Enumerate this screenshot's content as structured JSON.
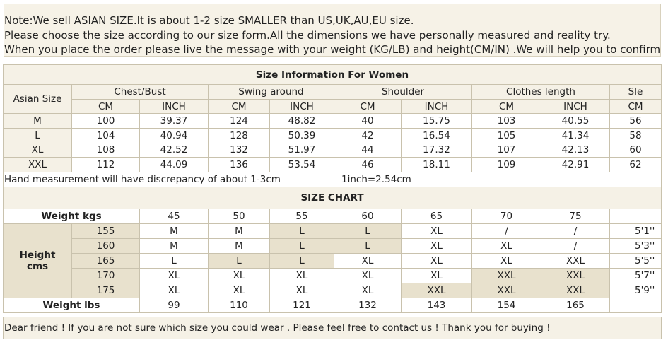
{
  "note": [
    "Note:We sell ASIAN SIZE.It is about 1-2 size SMALLER than US,UK,AU,EU size.",
    "Please choose the size according to our size form.All the dimensions we have personally measured and reality try.",
    "When you place the order please live the message with your weight (KG/LB) and height(CM/IN) .We will help you to confirm the size"
  ],
  "size_info": {
    "title": "Size Information For Women",
    "asian_size_label": "Asian Size",
    "groups": [
      "Chest/Bust",
      "Swing around",
      "Shoulder",
      "Clothes length",
      "Sle"
    ],
    "units": [
      "CM",
      "INCH",
      "CM",
      "INCH",
      "CM",
      "INCH",
      "CM",
      "INCH",
      "CM"
    ],
    "rows": [
      [
        "M",
        "100",
        "39.37",
        "124",
        "48.82",
        "40",
        "15.75",
        "103",
        "40.55",
        "56"
      ],
      [
        "L",
        "104",
        "40.94",
        "128",
        "50.39",
        "42",
        "16.54",
        "105",
        "41.34",
        "58"
      ],
      [
        "XL",
        "108",
        "42.52",
        "132",
        "51.97",
        "44",
        "17.32",
        "107",
        "42.13",
        "60"
      ],
      [
        "XXL",
        "112",
        "44.09",
        "136",
        "53.54",
        "46",
        "18.11",
        "109",
        "42.91",
        "62"
      ]
    ]
  },
  "hand_note": "Hand measurement will have discrepancy of about 1-3cm",
  "inch_note": "1inch=2.54cm",
  "size_chart": {
    "title": "SIZE CHART",
    "weight_kgs_label": "Weight  kgs",
    "weights_kg": [
      "45",
      "50",
      "55",
      "60",
      "65",
      "70",
      "75"
    ],
    "height_label": [
      "Height",
      "cms"
    ],
    "heights": [
      "155",
      "160",
      "165",
      "170",
      "175"
    ],
    "rows": [
      [
        "M",
        "M",
        "L",
        "L",
        "XL",
        "/",
        "/"
      ],
      [
        "M",
        "M",
        "L",
        "L",
        "XL",
        "XL",
        "/"
      ],
      [
        "L",
        "L",
        "L",
        "XL",
        "XL",
        "XL",
        "XXL"
      ],
      [
        "XL",
        "XL",
        "XL",
        "XL",
        "XL",
        "XXL",
        "XXL"
      ],
      [
        "XL",
        "XL",
        "XL",
        "XL",
        "XXL",
        "XXL",
        "XXL"
      ]
    ],
    "feet": [
      "5'1''",
      "5'3''",
      "5'5''",
      "5'7''",
      "5'9''"
    ],
    "weight_lbs_label": "Weight lbs",
    "weights_lb": [
      "99",
      "110",
      "121",
      "132",
      "143",
      "154",
      "165"
    ]
  },
  "footer": "Dear friend ! If you are not sure which size you could wear . Please feel free to contact us ! Thank you for buying !"
}
